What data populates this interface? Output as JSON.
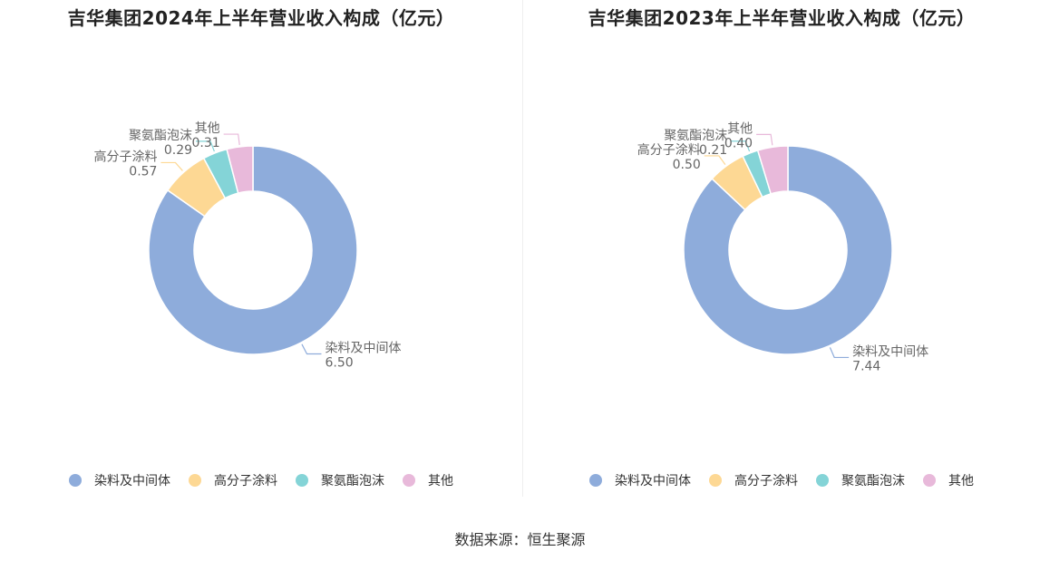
{
  "colors": [
    "#8eacdb",
    "#fdd894",
    "#84d4d7",
    "#e8b9da"
  ],
  "source": "数据来源：恒生聚源",
  "chart_data": [
    {
      "type": "pie",
      "title": "吉华集团2024年上半年营业收入构成（亿元）",
      "categories": [
        "染料及中间体",
        "高分子涂料",
        "聚氨酯泡沫",
        "其他"
      ],
      "values": [
        6.5,
        0.57,
        0.29,
        0.31
      ],
      "value_labels": [
        "6.50",
        "0.57",
        "0.29",
        "0.31"
      ],
      "legend": [
        "染料及中间体",
        "高分子涂料",
        "聚氨酯泡沫",
        "其他"
      ],
      "legend_position": "bottom"
    },
    {
      "type": "pie",
      "title": "吉华集团2023年上半年营业收入构成（亿元）",
      "categories": [
        "染料及中间体",
        "高分子涂料",
        "聚氨酯泡沫",
        "其他"
      ],
      "values": [
        7.44,
        0.5,
        0.21,
        0.4
      ],
      "value_labels": [
        "7.44",
        "0.50",
        "0.21",
        "0.40"
      ],
      "legend": [
        "染料及中间体",
        "高分子涂料",
        "聚氨酯泡沫",
        "其他"
      ],
      "legend_position": "bottom"
    }
  ]
}
